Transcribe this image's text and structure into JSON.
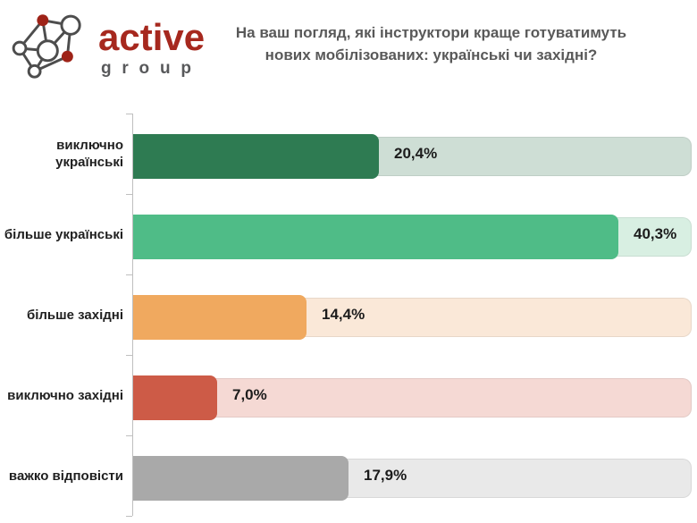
{
  "logo": {
    "brand": "active",
    "sub": "group"
  },
  "title": {
    "line1": "На ваш погляд, які інструктори краще готуватимуть",
    "line2": "нових мобілізованих: українські чи західні?"
  },
  "chart_data": {
    "type": "bar",
    "orientation": "horizontal",
    "title": "На ваш погляд, які інструктори краще готуватимуть нових мобілізованих: українські чи західні?",
    "categories": [
      "виключно українські",
      "більше українські",
      "більше західні",
      "виключно західні",
      "важко відповісти"
    ],
    "values": [
      20.4,
      40.3,
      14.4,
      7.0,
      17.9
    ],
    "value_labels": [
      "20,4%",
      "40,3%",
      "14,4%",
      "7,0%",
      "17,9%"
    ],
    "bar_colors": [
      "#2E7B52",
      "#4FBC87",
      "#F0A95F",
      "#CD5B47",
      "#A9A9A9"
    ],
    "track_colors": [
      "#CEDED5",
      "#D8EFE2",
      "#FAE8D8",
      "#F5D9D4",
      "#E9E9E9"
    ],
    "xlim": [
      0,
      46.4
    ],
    "grid": false,
    "legend": false,
    "xlabel": "",
    "ylabel": ""
  },
  "colors": {
    "brand_red": "#A6281E",
    "brand_gray": "#58595B",
    "title_text": "#595959",
    "axis": "#BFBFBF",
    "label_text": "#1F1F1F"
  }
}
